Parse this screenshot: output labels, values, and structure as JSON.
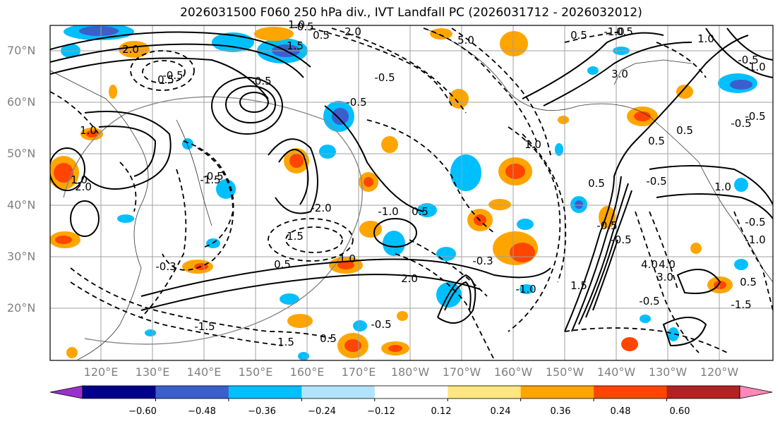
{
  "title": "2026031500 F060 250 hPa div., IVT Landfall PC (2026031712 - 2026032012)",
  "lat_labels": [
    "70°N",
    "60°N",
    "50°N",
    "40°N",
    "30°N",
    "20°N"
  ],
  "lon_labels": [
    "120°E",
    "130°E",
    "140°E",
    "150°E",
    "160°E",
    "170°E",
    "180°W",
    "170°W",
    "160°W",
    "150°W",
    "140°W",
    "130°W",
    "120°W"
  ],
  "colorbar": {
    "colors": [
      "#9932cc",
      "#00008b",
      "#3a5fcd",
      "#00bfff",
      "#b2e3fc",
      "#ffffff",
      "#ffe680",
      "#ffa500",
      "#ff4500",
      "#b22222",
      "#ff88b8"
    ],
    "ticks": [
      "−0.60",
      "−0.48",
      "−0.36",
      "−0.24",
      "−0.12",
      "0.12",
      "0.24",
      "0.36",
      "0.48",
      "0.60"
    ]
  },
  "contour_labels": [
    "2.0",
    "1.5",
    "1.0",
    "0.5",
    "0.5",
    "-0.5",
    "-0.5",
    "-0.5",
    "1.0",
    "5.0",
    "0.5",
    "0.5",
    "-0.5",
    "-0.3",
    "3.0",
    "1.0",
    "1.0",
    "-0.5",
    "0.5",
    "1.0",
    "-0.5",
    "-1.0",
    "0.5",
    "-0.5",
    "-1.0",
    "-0.5",
    "1.5",
    "4.0",
    "-1.0",
    "-0.5",
    "2.0",
    "2.0",
    "1.0",
    "-0.5",
    "-1.5",
    "-2.0",
    "1.5",
    "-0.3",
    "-1.5",
    "0.5",
    "-0.5",
    "0.5",
    "2.0",
    "1.0",
    "1.5",
    "0.5",
    "-1.5",
    "-1.0",
    "-0.5",
    "0.5",
    "-0.5",
    "4.0",
    "3.0",
    "0.5",
    "-0.5",
    "-1.0",
    "-0.5"
  ]
}
